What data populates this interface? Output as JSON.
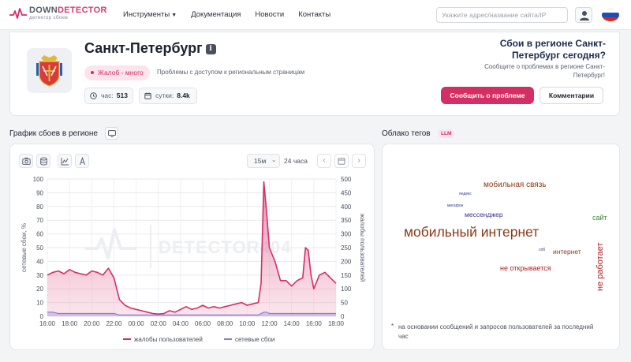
{
  "header": {
    "logo": {
      "name_part1": "DOWN",
      "name_part2": "DETECTOR",
      "tagline": "детектор сбоев"
    },
    "nav": [
      {
        "label": "Инструменты",
        "dropdown": true
      },
      {
        "label": "Документация"
      },
      {
        "label": "Новости"
      },
      {
        "label": "Контакты"
      }
    ],
    "search": {
      "placeholder": "Укажите адрес/название сайта/IP",
      "value": ""
    },
    "user_icon": "user-icon",
    "flag_icon": "russia-flag-icon"
  },
  "summary": {
    "city": "Санкт-Петербург",
    "info_icon": "info-icon",
    "badge": "Жалоб - много",
    "issues_note": "Проблемы с доступом к региональным страницам",
    "stat_hour": {
      "label": "час:",
      "value": "513",
      "icon": "clock-icon"
    },
    "stat_day": {
      "label": "сутки:",
      "value": "8.4k",
      "icon": "calendar-icon"
    },
    "question": "Сбои в регионе Санкт-Петербург сегодня?",
    "question_sub": "Сообщите о проблемах в регионе Санкт-Петербург!",
    "report_button": "Сообщить о проблеме",
    "comments_button": "Комментарии",
    "colors": {
      "accent": "#d42e65",
      "badge_bg": "#fde3ec"
    }
  },
  "chart_section": {
    "title": "График сбоев в регионе",
    "toolbar": {
      "tools": [
        "camera-icon",
        "database-icon",
        "chart-icon",
        "text-icon"
      ],
      "interval": "15м",
      "range": "24 часа",
      "prev_icon": "chevron-left-icon",
      "calendar_icon": "calendar-icon",
      "next_icon": "chevron-right-icon"
    },
    "watermark": "DETECTOR404"
  },
  "chart_data": {
    "type": "area",
    "title": "",
    "x": [
      "16:00",
      "16:30",
      "17:00",
      "17:30",
      "18:00",
      "18:30",
      "19:00",
      "19:30",
      "20:00",
      "20:30",
      "21:00",
      "21:30",
      "22:00",
      "22:30",
      "23:00",
      "23:30",
      "00:00",
      "00:30",
      "01:00",
      "01:30",
      "02:00",
      "02:30",
      "03:00",
      "03:30",
      "04:00",
      "04:30",
      "05:00",
      "05:30",
      "06:00",
      "06:30",
      "07:00",
      "07:30",
      "08:00",
      "08:30",
      "09:00",
      "09:30",
      "10:00",
      "10:30",
      "11:00",
      "11:15",
      "11:30",
      "11:45",
      "12:00",
      "12:30",
      "13:00",
      "13:30",
      "14:00",
      "14:30",
      "15:00",
      "15:15",
      "15:30",
      "15:45",
      "16:00",
      "16:30",
      "17:00",
      "17:30",
      "18:00"
    ],
    "x_ticks": [
      "16:00",
      "18:00",
      "20:00",
      "22:00",
      "00:00",
      "02:00",
      "04:00",
      "06:00",
      "08:00",
      "10:00",
      "12:00",
      "14:00",
      "16:00",
      "18:00"
    ],
    "ylabel_left": "сетевые сбои, %",
    "ylabel_right": "жалобы пользователей",
    "ylim_left": [
      0,
      100
    ],
    "yticks_left": [
      0,
      10,
      20,
      30,
      40,
      50,
      60,
      70,
      80,
      90,
      100
    ],
    "ylim_right": [
      0,
      500
    ],
    "yticks_right": [
      0,
      50,
      100,
      150,
      200,
      250,
      300,
      350,
      400,
      450,
      500
    ],
    "grid": true,
    "legend_position": "bottom",
    "series": [
      {
        "name": "жалобы пользователей",
        "axis": "right",
        "color": "#d42e65",
        "values": [
          150,
          160,
          165,
          155,
          170,
          160,
          155,
          150,
          165,
          160,
          150,
          175,
          140,
          60,
          40,
          30,
          25,
          20,
          15,
          10,
          8,
          10,
          20,
          15,
          25,
          35,
          25,
          30,
          40,
          30,
          35,
          30,
          35,
          40,
          45,
          50,
          40,
          45,
          50,
          120,
          490,
          380,
          250,
          200,
          130,
          130,
          110,
          130,
          140,
          250,
          240,
          150,
          100,
          150,
          160,
          140,
          120
        ]
      },
      {
        "name": "сетевые сбои",
        "axis": "left",
        "color": "#8e7ad6",
        "values": [
          3,
          3,
          2,
          2,
          2,
          2,
          2,
          2,
          2,
          2,
          2,
          2,
          2,
          1,
          1,
          1,
          1,
          1,
          1,
          1,
          1,
          1,
          1,
          1,
          1,
          1,
          1,
          1,
          1,
          1,
          1,
          1,
          1,
          1,
          1,
          1,
          1,
          1,
          1,
          2,
          3,
          3,
          2,
          2,
          2,
          2,
          2,
          2,
          2,
          2,
          2,
          2,
          2,
          2,
          2,
          2,
          2
        ]
      }
    ]
  },
  "tags_section": {
    "title": "Облако тегов",
    "badge": "LLM",
    "tags": [
      {
        "text": "мобильная связь",
        "color": "#8a3a17"
      },
      {
        "text": "яндекс",
        "color": "#2e3a86"
      },
      {
        "text": "мегафон",
        "color": "#2e3a86"
      },
      {
        "text": "мессенджер",
        "color": "#3a2f86"
      },
      {
        "text": "сайт",
        "color": "#3a8a3a"
      },
      {
        "text": "мобильный интернет",
        "color": "#8a3a17"
      },
      {
        "text": "не работает",
        "color": "#b02020"
      },
      {
        "text": "спб",
        "color": "#2e3a86"
      },
      {
        "text": "интернет",
        "color": "#8a3a17"
      },
      {
        "text": "не открывается",
        "color": "#b02020"
      }
    ],
    "note": "на основании сообщений и запросов пользователей за последний час"
  }
}
